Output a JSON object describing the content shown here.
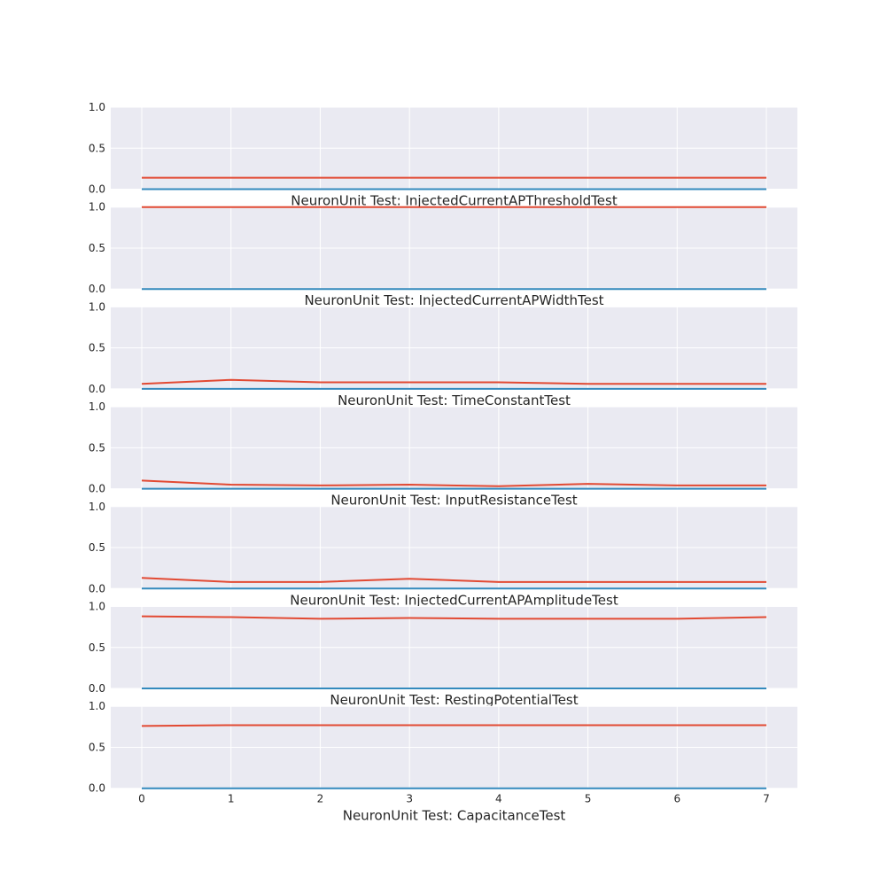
{
  "chart_data": [
    {
      "type": "line",
      "title": "NeuronUnit Test: InjectedCurrentAPThresholdTest",
      "x": [
        0,
        1,
        2,
        3,
        4,
        5,
        6,
        7
      ],
      "series": [
        {
          "values": [
            0.14,
            0.14,
            0.14,
            0.14,
            0.14,
            0.14,
            0.14,
            0.14
          ],
          "color": "#e24a33"
        },
        {
          "values": [
            0.0,
            0.0,
            0.0,
            0.0,
            0.0,
            0.0,
            0.0,
            0.0
          ],
          "color": "#348abd"
        }
      ],
      "ylim": [
        0,
        1
      ],
      "yticks": [
        0.0,
        0.5,
        1.0
      ],
      "ytick_labels": [
        "0.0",
        "0.5",
        "1.0"
      ],
      "grid": true
    },
    {
      "type": "line",
      "title": "NeuronUnit Test: InjectedCurrentAPWidthTest",
      "x": [
        0,
        1,
        2,
        3,
        4,
        5,
        6,
        7
      ],
      "series": [
        {
          "values": [
            1.0,
            1.0,
            1.0,
            1.0,
            1.0,
            1.0,
            1.0,
            1.0
          ],
          "color": "#e24a33"
        },
        {
          "values": [
            0.0,
            0.0,
            0.0,
            0.0,
            0.0,
            0.0,
            0.0,
            0.0
          ],
          "color": "#348abd"
        }
      ],
      "ylim": [
        0,
        1
      ],
      "yticks": [
        0.0,
        0.5,
        1.0
      ],
      "ytick_labels": [
        "0.0",
        "0.5",
        "1.0"
      ],
      "grid": true
    },
    {
      "type": "line",
      "title": "NeuronUnit Test: TimeConstantTest",
      "x": [
        0,
        1,
        2,
        3,
        4,
        5,
        6,
        7
      ],
      "series": [
        {
          "values": [
            0.06,
            0.11,
            0.08,
            0.08,
            0.08,
            0.06,
            0.06,
            0.06
          ],
          "color": "#e24a33"
        },
        {
          "values": [
            0.0,
            0.0,
            0.0,
            0.0,
            0.0,
            0.0,
            0.0,
            0.0
          ],
          "color": "#348abd"
        }
      ],
      "ylim": [
        0,
        1
      ],
      "yticks": [
        0.0,
        0.5,
        1.0
      ],
      "ytick_labels": [
        "0.0",
        "0.5",
        "1.0"
      ],
      "grid": true
    },
    {
      "type": "line",
      "title": "NeuronUnit Test: InputResistanceTest",
      "x": [
        0,
        1,
        2,
        3,
        4,
        5,
        6,
        7
      ],
      "series": [
        {
          "values": [
            0.1,
            0.05,
            0.04,
            0.05,
            0.03,
            0.06,
            0.04,
            0.04
          ],
          "color": "#e24a33"
        },
        {
          "values": [
            0.0,
            0.0,
            0.0,
            0.0,
            0.0,
            0.0,
            0.0,
            0.0
          ],
          "color": "#348abd"
        }
      ],
      "ylim": [
        0,
        1
      ],
      "yticks": [
        0.0,
        0.5,
        1.0
      ],
      "ytick_labels": [
        "0.0",
        "0.5",
        "1.0"
      ],
      "grid": true
    },
    {
      "type": "line",
      "title": "NeuronUnit Test: InjectedCurrentAPAmplitudeTest",
      "x": [
        0,
        1,
        2,
        3,
        4,
        5,
        6,
        7
      ],
      "series": [
        {
          "values": [
            0.13,
            0.08,
            0.08,
            0.12,
            0.08,
            0.08,
            0.08,
            0.08
          ],
          "color": "#e24a33"
        },
        {
          "values": [
            0.0,
            0.0,
            0.0,
            0.0,
            0.0,
            0.0,
            0.0,
            0.0
          ],
          "color": "#348abd"
        }
      ],
      "ylim": [
        0,
        1
      ],
      "yticks": [
        0.0,
        0.5,
        1.0
      ],
      "ytick_labels": [
        "0.0",
        "0.5",
        "1.0"
      ],
      "grid": true
    },
    {
      "type": "line",
      "title": "NeuronUnit Test: RestingPotentialTest",
      "x": [
        0,
        1,
        2,
        3,
        4,
        5,
        6,
        7
      ],
      "series": [
        {
          "values": [
            0.88,
            0.87,
            0.85,
            0.86,
            0.85,
            0.85,
            0.85,
            0.87
          ],
          "color": "#e24a33"
        },
        {
          "values": [
            0.0,
            0.0,
            0.0,
            0.0,
            0.0,
            0.0,
            0.0,
            0.0
          ],
          "color": "#348abd"
        }
      ],
      "ylim": [
        0,
        1
      ],
      "yticks": [
        0.0,
        0.5,
        1.0
      ],
      "ytick_labels": [
        "0.0",
        "0.5",
        "1.0"
      ],
      "grid": true
    },
    {
      "type": "line",
      "title": "NeuronUnit Test: CapacitanceTest",
      "x": [
        0,
        1,
        2,
        3,
        4,
        5,
        6,
        7
      ],
      "series": [
        {
          "values": [
            0.76,
            0.77,
            0.77,
            0.77,
            0.77,
            0.77,
            0.77,
            0.77
          ],
          "color": "#e24a33"
        },
        {
          "values": [
            0.0,
            0.0,
            0.0,
            0.0,
            0.0,
            0.0,
            0.0,
            0.0
          ],
          "color": "#348abd"
        }
      ],
      "ylim": [
        0,
        1
      ],
      "yticks": [
        0.0,
        0.5,
        1.0
      ],
      "ytick_labels": [
        "0.0",
        "0.5",
        "1.0"
      ],
      "grid": true,
      "xticks": [
        0,
        1,
        2,
        3,
        4,
        5,
        6,
        7
      ],
      "xtick_labels": [
        "0",
        "1",
        "2",
        "3",
        "4",
        "5",
        "6",
        "7"
      ]
    }
  ]
}
